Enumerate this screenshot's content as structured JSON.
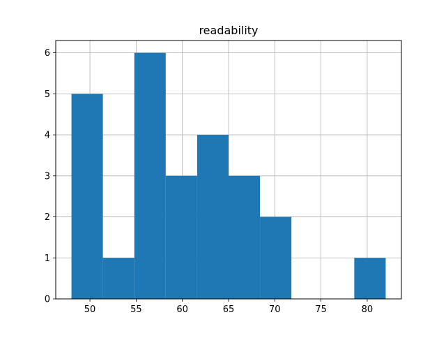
{
  "chart_data": {
    "type": "bar",
    "title": "readability",
    "xlabel": "",
    "ylabel": "",
    "xlim": [
      46.3,
      83.7
    ],
    "ylim": [
      0,
      6.3
    ],
    "grid": true,
    "bins": [
      {
        "start": 48.0,
        "end": 51.4,
        "count": 5
      },
      {
        "start": 51.4,
        "end": 54.8,
        "count": 1
      },
      {
        "start": 54.8,
        "end": 58.2,
        "count": 6
      },
      {
        "start": 58.2,
        "end": 61.6,
        "count": 3
      },
      {
        "start": 61.6,
        "end": 65.0,
        "count": 4
      },
      {
        "start": 65.0,
        "end": 68.4,
        "count": 3
      },
      {
        "start": 68.4,
        "end": 71.8,
        "count": 2
      },
      {
        "start": 71.8,
        "end": 75.2,
        "count": 0
      },
      {
        "start": 75.2,
        "end": 78.6,
        "count": 0
      },
      {
        "start": 78.6,
        "end": 82.0,
        "count": 1
      }
    ],
    "x_ticks": [
      50,
      55,
      60,
      65,
      70,
      75,
      80
    ],
    "y_ticks": [
      0,
      1,
      2,
      3,
      4,
      5,
      6
    ],
    "bar_color": "#1f77b4",
    "grid_color": "#b0b0b0"
  }
}
